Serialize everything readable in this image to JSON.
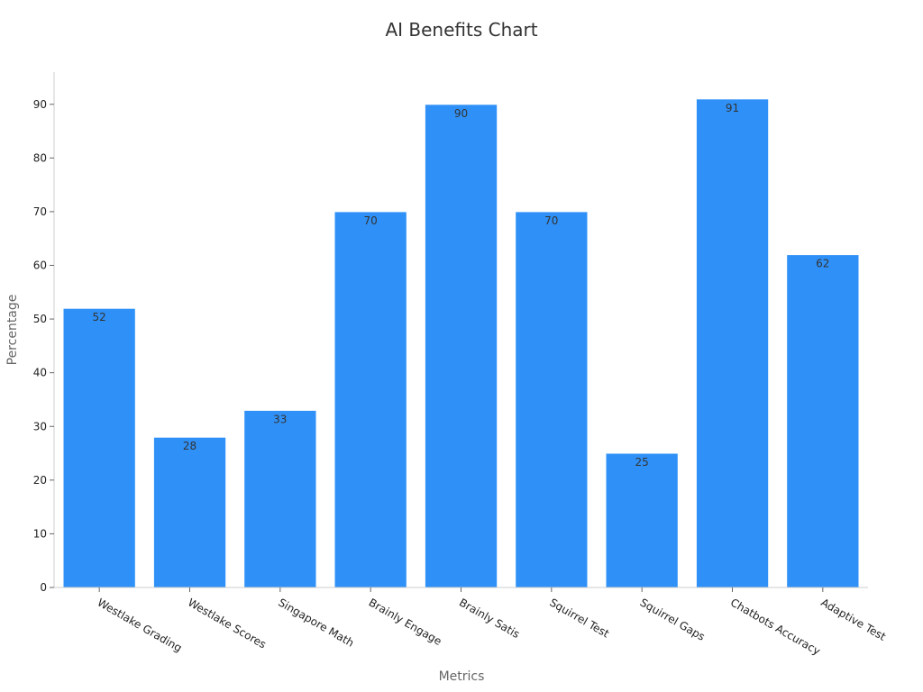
{
  "chart_data": {
    "type": "bar",
    "title": "AI Benefits Chart",
    "xlabel": "Metrics",
    "ylabel": "Percentage",
    "categories": [
      "Westlake Grading",
      "Westlake Scores",
      "Singapore Math",
      "Brainly Engage",
      "Brainly Satis",
      "Squirrel Test",
      "Squirrel Gaps",
      "Chatbots Accuracy",
      "Adaptive Test"
    ],
    "values": [
      52,
      28,
      33,
      70,
      90,
      70,
      25,
      91,
      62
    ],
    "ylim": [
      0,
      96
    ],
    "yticks": [
      0,
      10,
      20,
      30,
      40,
      50,
      60,
      70,
      80,
      90
    ],
    "grid": false,
    "legend": "none",
    "bar_color": "#2f91f7",
    "data_labels": true
  }
}
